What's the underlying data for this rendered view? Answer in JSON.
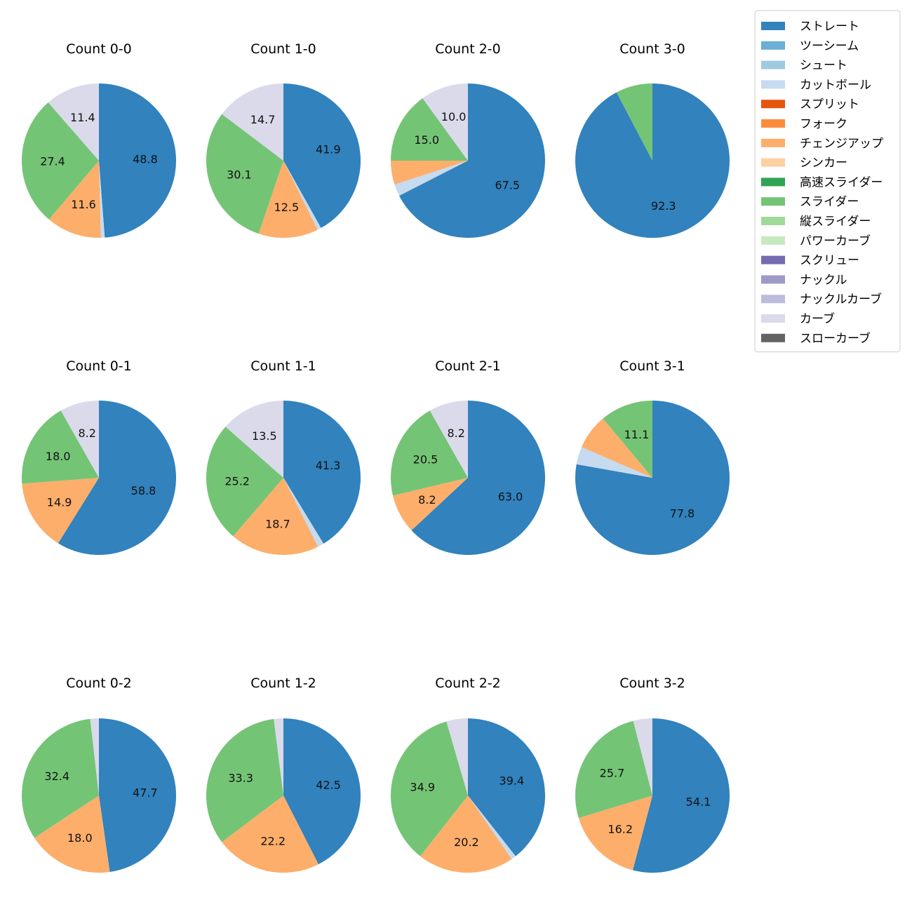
{
  "legend": {
    "placement": "top-right",
    "items": [
      {
        "label": "ストレート",
        "color": "#3182bd"
      },
      {
        "label": "ツーシーム",
        "color": "#6baed6"
      },
      {
        "label": "シュート",
        "color": "#9ecae1"
      },
      {
        "label": "カットボール",
        "color": "#c6dbef"
      },
      {
        "label": "スプリット",
        "color": "#e6550d"
      },
      {
        "label": "フォーク",
        "color": "#fd8d3c"
      },
      {
        "label": "チェンジアップ",
        "color": "#fdae6b"
      },
      {
        "label": "シンカー",
        "color": "#fdd0a2"
      },
      {
        "label": "高速スライダー",
        "color": "#31a354"
      },
      {
        "label": "スライダー",
        "color": "#74c476"
      },
      {
        "label": "縦スライダー",
        "color": "#a1d99b"
      },
      {
        "label": "パワーカーブ",
        "color": "#c7e9c0"
      },
      {
        "label": "スクリュー",
        "color": "#756bb1"
      },
      {
        "label": "ナックル",
        "color": "#9e9ac8"
      },
      {
        "label": "ナックルカーブ",
        "color": "#bcbddc"
      },
      {
        "label": "カーブ",
        "color": "#dadaeb"
      },
      {
        "label": "スローカーブ",
        "color": "#636363"
      }
    ]
  },
  "chart_data": [
    {
      "type": "pie",
      "title": "Count 0-0",
      "slices": [
        {
          "name": "ストレート",
          "value": 48.8
        },
        {
          "name": "カットボール",
          "value": 0.8
        },
        {
          "name": "チェンジアップ",
          "value": 11.6
        },
        {
          "name": "スライダー",
          "value": 27.4
        },
        {
          "name": "カーブ",
          "value": 11.4
        }
      ]
    },
    {
      "type": "pie",
      "title": "Count 1-0",
      "slices": [
        {
          "name": "ストレート",
          "value": 41.9
        },
        {
          "name": "カットボール",
          "value": 0.8
        },
        {
          "name": "チェンジアップ",
          "value": 12.5
        },
        {
          "name": "スライダー",
          "value": 30.1
        },
        {
          "name": "カーブ",
          "value": 14.7
        }
      ]
    },
    {
      "type": "pie",
      "title": "Count 2-0",
      "slices": [
        {
          "name": "ストレート",
          "value": 67.5
        },
        {
          "name": "カットボール",
          "value": 2.5
        },
        {
          "name": "チェンジアップ",
          "value": 5.0
        },
        {
          "name": "スライダー",
          "value": 15.0
        },
        {
          "name": "カーブ",
          "value": 10.0
        }
      ]
    },
    {
      "type": "pie",
      "title": "Count 3-0",
      "slices": [
        {
          "name": "ストレート",
          "value": 92.3
        },
        {
          "name": "スライダー",
          "value": 7.7
        }
      ]
    },
    {
      "type": "pie",
      "title": "Count 0-1",
      "slices": [
        {
          "name": "ストレート",
          "value": 58.8
        },
        {
          "name": "チェンジアップ",
          "value": 14.9
        },
        {
          "name": "スライダー",
          "value": 18.0
        },
        {
          "name": "カーブ",
          "value": 8.2
        }
      ]
    },
    {
      "type": "pie",
      "title": "Count 1-1",
      "slices": [
        {
          "name": "ストレート",
          "value": 41.3
        },
        {
          "name": "カットボール",
          "value": 1.3
        },
        {
          "name": "チェンジアップ",
          "value": 18.7
        },
        {
          "name": "スライダー",
          "value": 25.2
        },
        {
          "name": "カーブ",
          "value": 13.5
        }
      ]
    },
    {
      "type": "pie",
      "title": "Count 2-1",
      "slices": [
        {
          "name": "ストレート",
          "value": 63.0
        },
        {
          "name": "チェンジアップ",
          "value": 8.2
        },
        {
          "name": "スライダー",
          "value": 20.5
        },
        {
          "name": "カーブ",
          "value": 8.2
        }
      ]
    },
    {
      "type": "pie",
      "title": "Count 3-1",
      "slices": [
        {
          "name": "ストレート",
          "value": 77.8
        },
        {
          "name": "カットボール",
          "value": 3.7
        },
        {
          "name": "チェンジアップ",
          "value": 7.4
        },
        {
          "name": "スライダー",
          "value": 11.1
        }
      ]
    },
    {
      "type": "pie",
      "title": "Count 0-2",
      "slices": [
        {
          "name": "ストレート",
          "value": 47.7
        },
        {
          "name": "チェンジアップ",
          "value": 18.0
        },
        {
          "name": "スライダー",
          "value": 32.4
        },
        {
          "name": "カーブ",
          "value": 1.8
        }
      ]
    },
    {
      "type": "pie",
      "title": "Count 1-2",
      "slices": [
        {
          "name": "ストレート",
          "value": 42.5
        },
        {
          "name": "チェンジアップ",
          "value": 22.2
        },
        {
          "name": "スライダー",
          "value": 33.3
        },
        {
          "name": "カーブ",
          "value": 2.0
        }
      ]
    },
    {
      "type": "pie",
      "title": "Count 2-2",
      "slices": [
        {
          "name": "ストレート",
          "value": 39.4
        },
        {
          "name": "カットボール",
          "value": 1.0
        },
        {
          "name": "チェンジアップ",
          "value": 20.2
        },
        {
          "name": "スライダー",
          "value": 34.9
        },
        {
          "name": "カーブ",
          "value": 4.5
        }
      ]
    },
    {
      "type": "pie",
      "title": "Count 3-2",
      "slices": [
        {
          "name": "ストレート",
          "value": 54.1
        },
        {
          "name": "チェンジアップ",
          "value": 16.2
        },
        {
          "name": "スライダー",
          "value": 25.7
        },
        {
          "name": "カーブ",
          "value": 4.0
        }
      ]
    }
  ]
}
